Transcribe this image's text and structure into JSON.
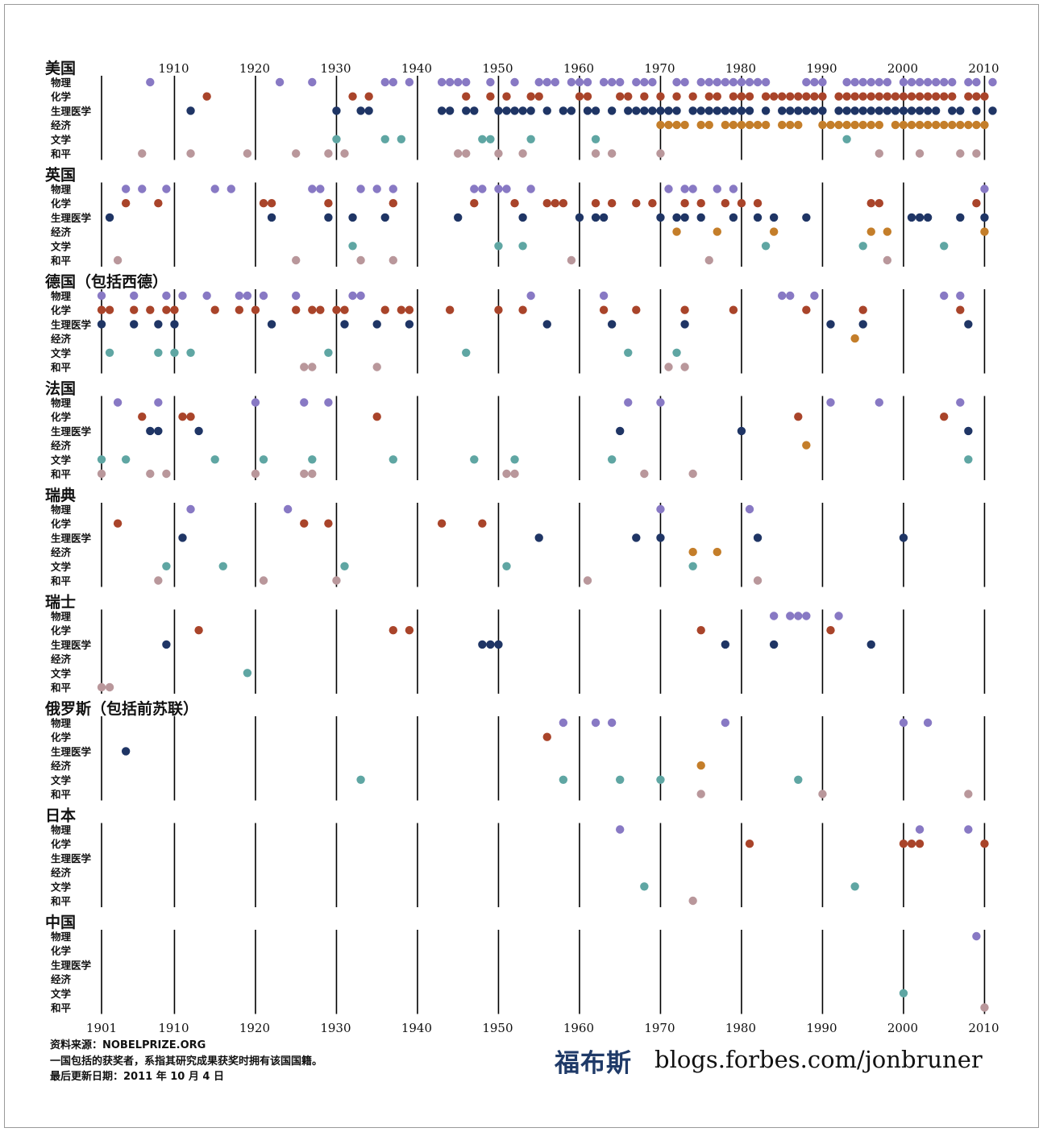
{
  "chart_data": {
    "type": "scatter",
    "x_range": [
      1901,
      2010
    ],
    "x_ticks": [
      1910,
      1920,
      1930,
      1940,
      1950,
      1960,
      1970,
      1980,
      1990,
      2000,
      2010
    ],
    "bottom_ticks": [
      "1901",
      "1910",
      "1920",
      "1930",
      "1940",
      "1950",
      "1960",
      "1970",
      "1980",
      "1990",
      "2000",
      "2010"
    ],
    "top_ticks": [
      "1910",
      "1920",
      "1930",
      "1940",
      "1950",
      "1960",
      "1970",
      "1980",
      "1990",
      "2000",
      "2010"
    ],
    "category_labels": [
      "物理",
      "化学",
      "生理医学",
      "经济",
      "文学",
      "和平"
    ],
    "colors": {
      "物理": "#8879c4",
      "化学": "#a9442a",
      "生理医学": "#1f3565",
      "经济": "#c47e2a",
      "文学": "#5fa6a3",
      "和平": "#b9979b"
    },
    "countries": [
      {
        "name": "美国",
        "years": {
          "物理": [
            1907,
            1923,
            1927,
            1936,
            1937,
            1939,
            1943,
            1944,
            1945,
            1946,
            1949,
            1952,
            1955,
            1956,
            1957,
            1959,
            1960,
            1961,
            1963,
            1964,
            1965,
            1967,
            1968,
            1969,
            1972,
            1973,
            1975,
            1976,
            1977,
            1978,
            1979,
            1980,
            1981,
            1982,
            1983,
            1988,
            1989,
            1990,
            1993,
            1994,
            1995,
            1996,
            1997,
            1998,
            2000,
            2001,
            2002,
            2003,
            2004,
            2005,
            2006,
            2008,
            2009,
            2011
          ],
          "化学": [
            1914,
            1932,
            1934,
            1946,
            1949,
            1951,
            1954,
            1955,
            1960,
            1961,
            1965,
            1966,
            1968,
            1970,
            1972,
            1974,
            1976,
            1977,
            1979,
            1980,
            1981,
            1983,
            1984,
            1985,
            1986,
            1987,
            1988,
            1989,
            1990,
            1992,
            1993,
            1994,
            1995,
            1996,
            1997,
            1998,
            1999,
            2000,
            2001,
            2002,
            2003,
            2004,
            2005,
            2006,
            2008,
            2009,
            2010
          ],
          "生理医学": [
            1912,
            1930,
            1933,
            1934,
            1943,
            1944,
            1946,
            1947,
            1950,
            1951,
            1952,
            1953,
            1954,
            1956,
            1958,
            1959,
            1961,
            1962,
            1964,
            1966,
            1967,
            1968,
            1969,
            1970,
            1971,
            1972,
            1974,
            1975,
            1976,
            1977,
            1978,
            1979,
            1980,
            1981,
            1983,
            1985,
            1986,
            1987,
            1988,
            1989,
            1990,
            1992,
            1993,
            1994,
            1995,
            1996,
            1997,
            1998,
            1999,
            2000,
            2001,
            2002,
            2003,
            2004,
            2006,
            2007,
            2009,
            2011
          ],
          "经济": [
            1970,
            1971,
            1972,
            1973,
            1975,
            1976,
            1978,
            1979,
            1980,
            1981,
            1982,
            1983,
            1985,
            1986,
            1987,
            1990,
            1991,
            1992,
            1993,
            1994,
            1995,
            1996,
            1997,
            1999,
            2000,
            2001,
            2002,
            2003,
            2004,
            2005,
            2006,
            2007,
            2008,
            2009,
            2010
          ],
          "文学": [
            1930,
            1936,
            1938,
            1948,
            1949,
            1954,
            1962,
            1993
          ],
          "和平": [
            1906,
            1912,
            1919,
            1925,
            1929,
            1931,
            1945,
            1946,
            1950,
            1953,
            1962,
            1964,
            1970,
            1997,
            2002,
            2007,
            2009
          ]
        }
      },
      {
        "name": "英国",
        "years": {
          "物理": [
            1904,
            1906,
            1909,
            1915,
            1917,
            1927,
            1928,
            1933,
            1935,
            1937,
            1947,
            1948,
            1950,
            1951,
            1954,
            1971,
            1973,
            1974,
            1977,
            1979,
            2010
          ],
          "化学": [
            1904,
            1908,
            1921,
            1922,
            1929,
            1937,
            1947,
            1952,
            1956,
            1957,
            1958,
            1962,
            1964,
            1967,
            1969,
            1973,
            1975,
            1978,
            1980,
            1982,
            1996,
            1997,
            2009
          ],
          "生理医学": [
            1902,
            1922,
            1929,
            1932,
            1936,
            1945,
            1953,
            1960,
            1962,
            1963,
            1970,
            1972,
            1973,
            1975,
            1979,
            1982,
            1984,
            1988,
            2001,
            2002,
            2003,
            2007,
            2010
          ],
          "经济": [
            1972,
            1977,
            1984,
            1996,
            1998,
            2010
          ],
          "文学": [
            1932,
            1950,
            1953,
            1983,
            1995,
            2005
          ],
          "和平": [
            1903,
            1925,
            1933,
            1937,
            1959,
            1976,
            1998
          ]
        }
      },
      {
        "name": "德国（包括西德）",
        "years": {
          "物理": [
            1901,
            1905,
            1909,
            1911,
            1914,
            1918,
            1919,
            1921,
            1925,
            1932,
            1933,
            1954,
            1963,
            1985,
            1986,
            1989,
            2005,
            2007
          ],
          "化学": [
            1901,
            1902,
            1905,
            1907,
            1909,
            1910,
            1915,
            1918,
            1920,
            1925,
            1927,
            1928,
            1930,
            1931,
            1936,
            1938,
            1939,
            1944,
            1950,
            1953,
            1963,
            1967,
            1973,
            1979,
            1988,
            1995,
            2007
          ],
          "生理医学": [
            1901,
            1905,
            1908,
            1910,
            1922,
            1931,
            1935,
            1939,
            1956,
            1964,
            1973,
            1991,
            1995,
            2008
          ],
          "经济": [
            1994
          ],
          "文学": [
            1902,
            1908,
            1910,
            1912,
            1929,
            1946,
            1966,
            1972
          ],
          "和平": [
            1926,
            1927,
            1935,
            1971,
            1973
          ]
        }
      },
      {
        "name": "法国",
        "years": {
          "物理": [
            1903,
            1908,
            1920,
            1926,
            1929,
            1966,
            1970,
            1991,
            1997,
            2007
          ],
          "化学": [
            1906,
            1911,
            1912,
            1935,
            1987,
            2005
          ],
          "生理医学": [
            1907,
            1908,
            1913,
            1965,
            1980,
            2008
          ],
          "经济": [
            1988
          ],
          "文学": [
            1901,
            1904,
            1915,
            1921,
            1927,
            1937,
            1947,
            1952,
            1964,
            2008
          ],
          "和平": [
            1901,
            1907,
            1909,
            1920,
            1926,
            1927,
            1951,
            1952,
            1968,
            1974
          ]
        }
      },
      {
        "name": "瑞典",
        "years": {
          "物理": [
            1912,
            1924,
            1970,
            1981
          ],
          "化学": [
            1903,
            1926,
            1929,
            1943,
            1948
          ],
          "生理医学": [
            1911,
            1955,
            1967,
            1970,
            1982,
            2000
          ],
          "经济": [
            1974,
            1977
          ],
          "文学": [
            1909,
            1916,
            1931,
            1951,
            1974
          ],
          "和平": [
            1908,
            1921,
            1930,
            1961,
            1982
          ]
        }
      },
      {
        "name": "瑞士",
        "years": {
          "物理": [
            1984,
            1986,
            1987,
            1988,
            1992
          ],
          "化学": [
            1913,
            1937,
            1939,
            1975,
            1991
          ],
          "生理医学": [
            1909,
            1948,
            1949,
            1950,
            1978,
            1984,
            1996
          ],
          "经济": [],
          "文学": [
            1919
          ],
          "和平": [
            1901,
            1902
          ]
        }
      },
      {
        "name": "俄罗斯（包括前苏联）",
        "years": {
          "物理": [
            1958,
            1962,
            1964,
            1978,
            2000,
            2003
          ],
          "化学": [
            1956
          ],
          "生理医学": [
            1904
          ],
          "经济": [
            1975
          ],
          "文学": [
            1933,
            1958,
            1965,
            1970,
            1987
          ],
          "和平": [
            1975,
            1990,
            2008
          ]
        }
      },
      {
        "name": "日本",
        "years": {
          "物理": [
            1965,
            2002,
            2008
          ],
          "化学": [
            1981,
            2000,
            2001,
            2002,
            2010
          ],
          "生理医学": [],
          "经济": [],
          "文学": [
            1968,
            1994
          ],
          "和平": [
            1974
          ]
        }
      },
      {
        "name": "中国",
        "years": {
          "物理": [
            2009
          ],
          "化学": [],
          "生理医学": [],
          "经济": [],
          "文学": [
            2000
          ],
          "和平": [
            2010
          ]
        }
      }
    ]
  },
  "footer": {
    "source": "资料来源：NOBELPRIZE.ORG",
    "note": "一国包括的获奖者，系指其研究成果获奖时拥有该国国籍。",
    "updated": "最后更新日期：2011 年 10 月 4 日"
  },
  "brand": "福布斯",
  "site": "blogs.forbes.com/jonbruner"
}
